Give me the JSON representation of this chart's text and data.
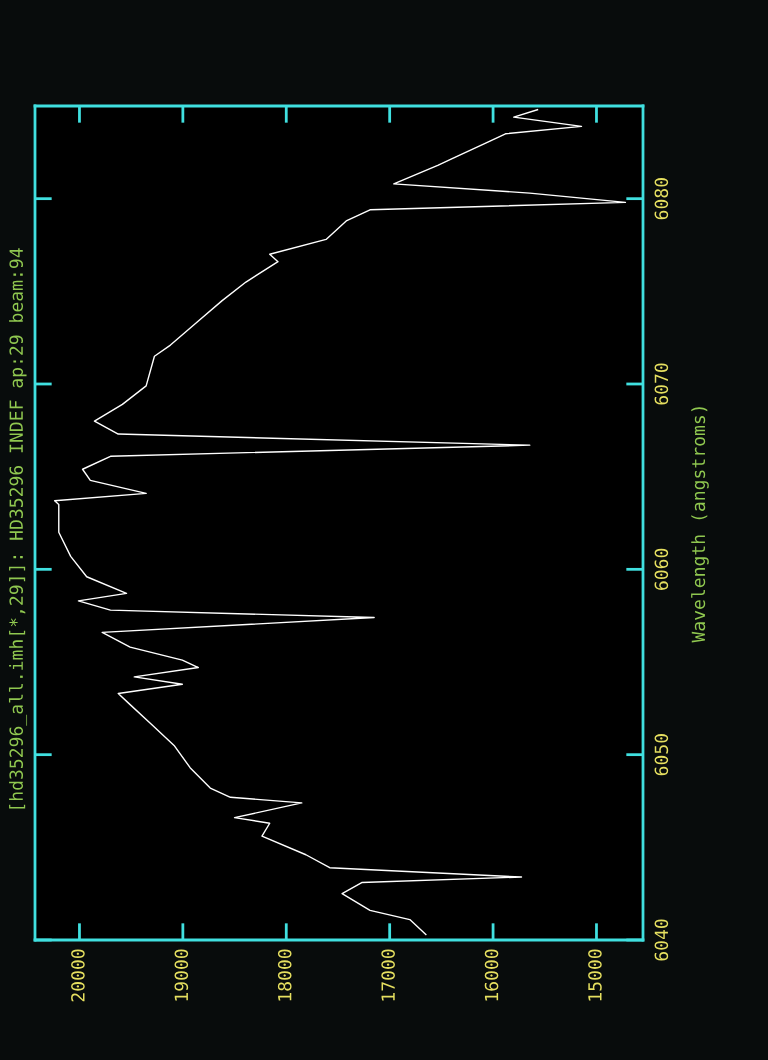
{
  "chart_data": {
    "type": "line",
    "title": "[hd35296_all.imh[*,29]]: HD35296 INDEF ap:29 beam:94",
    "ylabel": "Wavelength (angstroms)",
    "xlim": [
      20430,
      14550
    ],
    "xticks": [
      20000,
      19000,
      18000,
      17000,
      16000,
      15000
    ],
    "ylim": [
      6040,
      6085
    ],
    "yticks": [
      6040,
      6050,
      6060,
      6070,
      6080
    ],
    "grid": false,
    "series": [
      {
        "color": "#ffffff",
        "x": [
          16650,
          16805,
          17190,
          17460,
          17270,
          15725,
          17580,
          17810,
          18235,
          18160,
          18500,
          17850,
          18540,
          18735,
          18930,
          19085,
          19315,
          19510,
          19625,
          19005,
          19470,
          18850,
          19005,
          19510,
          19780,
          17150,
          19700,
          20010,
          19545,
          19930,
          20085,
          20200,
          20200,
          20240,
          19355,
          19895,
          19970,
          19700,
          15645,
          19625,
          19855,
          19585,
          19355,
          19275,
          19120,
          18850,
          18620,
          18390,
          18080,
          18160,
          17615,
          17420,
          17190,
          14720,
          15645,
          16960,
          16535,
          16380,
          16030,
          15880,
          15145,
          15800,
          15570
        ],
        "values": [
          6040.3,
          6041.1,
          6041.6,
          6042.5,
          6043.1,
          6043.4,
          6043.9,
          6044.6,
          6045.6,
          6046.3,
          6046.6,
          6047.4,
          6047.7,
          6048.2,
          6049.3,
          6050.5,
          6051.7,
          6052.7,
          6053.3,
          6053.8,
          6054.2,
          6054.7,
          6055.1,
          6055.8,
          6056.6,
          6057.4,
          6057.8,
          6058.3,
          6058.7,
          6059.6,
          6060.7,
          6062.0,
          6063.5,
          6063.7,
          6064.1,
          6064.8,
          6065.4,
          6066.1,
          6066.7,
          6067.3,
          6068.0,
          6068.9,
          6069.9,
          6071.5,
          6072.1,
          6073.4,
          6074.5,
          6075.5,
          6076.6,
          6077.0,
          6077.8,
          6078.8,
          6079.4,
          6079.8,
          6080.3,
          6080.8,
          6081.8,
          6082.2,
          6083.1,
          6083.5,
          6083.9,
          6084.4,
          6084.8
        ]
      }
    ]
  }
}
